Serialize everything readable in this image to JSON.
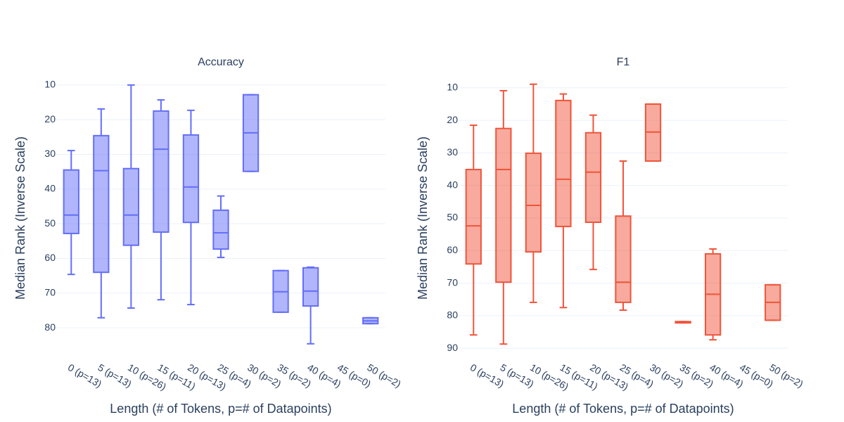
{
  "chart_data": [
    {
      "type": "box",
      "title": "Accuracy",
      "x_label": "Length (# of Tokens, p=# of Datapoints)",
      "y_label": "Median Rank (Inverse Scale)",
      "categories": [
        "0 (p=13)",
        "5 (p=13)",
        "10 (p=26)",
        "15 (p=11)",
        "20 (p=13)",
        "25 (p=4)",
        "30 (p=2)",
        "35 (p=2)",
        "40 (p=4)",
        "45 (p=0)",
        "50 (p=2)"
      ],
      "min": [
        28.9,
        16.9,
        10.0,
        14.3,
        17.3,
        42.0,
        12.8,
        63.5,
        62.5,
        null,
        77.1
      ],
      "q1": [
        34.5,
        24.6,
        34.1,
        17.5,
        24.4,
        46.1,
        12.8,
        63.5,
        62.7,
        null,
        77.1
      ],
      "median": [
        47.5,
        34.7,
        47.5,
        28.5,
        39.4,
        52.6,
        23.8,
        69.6,
        69.4,
        null,
        78.0
      ],
      "q3": [
        52.8,
        64.0,
        56.2,
        52.4,
        49.6,
        57.3,
        34.9,
        75.5,
        73.7,
        null,
        78.8
      ],
      "max": [
        64.6,
        77.1,
        74.3,
        71.9,
        73.3,
        59.7,
        34.9,
        75.5,
        84.6,
        null,
        78.8
      ],
      "color": "#636efa",
      "ylim": [
        7.8,
        88.9
      ],
      "yticks": [
        10,
        20,
        30,
        40,
        50,
        60,
        70,
        80
      ],
      "y_reversed": true,
      "grid": true
    },
    {
      "type": "box",
      "title": "F1",
      "x_label": "Length (# of Tokens, p=# of Datapoints)",
      "y_label": "Median Rank (Inverse Scale)",
      "categories": [
        "0 (p=13)",
        "5 (p=13)",
        "10 (p=26)",
        "15 (p=11)",
        "20 (p=13)",
        "25 (p=4)",
        "30 (p=2)",
        "35 (p=2)",
        "40 (p=4)",
        "45 (p=0)",
        "50 (p=2)"
      ],
      "min": [
        21.5,
        10.9,
        8.9,
        11.9,
        18.4,
        32.5,
        15.0,
        81.8,
        59.5,
        null,
        70.5
      ],
      "q1": [
        35.1,
        22.5,
        30.1,
        13.9,
        23.8,
        49.4,
        15.0,
        81.8,
        61.0,
        null,
        70.5
      ],
      "median": [
        52.4,
        35.1,
        46.1,
        38.1,
        35.9,
        69.7,
        23.6,
        82.0,
        73.4,
        null,
        75.9
      ],
      "q3": [
        64.1,
        69.7,
        60.4,
        52.6,
        51.3,
        75.9,
        32.5,
        82.2,
        85.9,
        null,
        81.4
      ],
      "max": [
        85.9,
        88.7,
        75.9,
        77.5,
        65.8,
        78.3,
        32.5,
        82.2,
        87.4,
        null,
        81.4
      ],
      "color": "#ef553b",
      "ylim": [
        6.8,
        93.2
      ],
      "yticks": [
        10,
        20,
        30,
        40,
        50,
        60,
        70,
        80,
        90
      ],
      "y_reversed": true,
      "grid": true
    }
  ]
}
